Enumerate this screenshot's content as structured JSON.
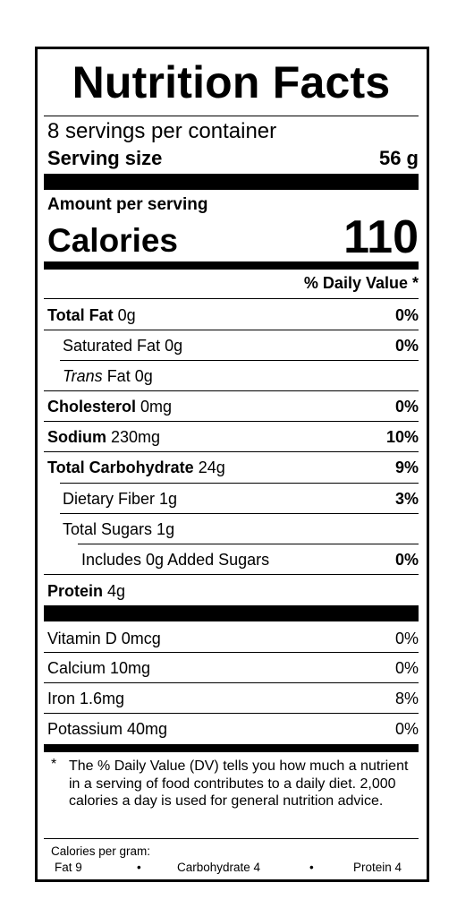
{
  "title": "Nutrition Facts",
  "servings_per_container": "8 servings per container",
  "serving_size": {
    "label": "Serving size",
    "value": "56 g"
  },
  "amount_per_serving": "Amount per serving",
  "calories": {
    "label": "Calories",
    "value": "110"
  },
  "daily_value_header": "% Daily Value *",
  "nutrients": [
    {
      "name": "Total Fat",
      "amount": " 0g",
      "dv": "0%"
    },
    {
      "name": "Saturated Fat 0g",
      "dv": "0%"
    },
    {
      "name_italic": "Trans",
      "name_rest": " Fat 0g"
    },
    {
      "name": "Cholesterol",
      "amount": " 0mg",
      "dv": "0%"
    },
    {
      "name": "Sodium",
      "amount": " 230mg",
      "dv": "10%"
    },
    {
      "name": "Total Carbohydrate",
      "amount": " 24g",
      "dv": "9%"
    },
    {
      "name": "Dietary Fiber 1g",
      "dv": "3%"
    },
    {
      "name": "Total Sugars 1g"
    },
    {
      "name": "Includes 0g Added Sugars",
      "dv": "0%"
    },
    {
      "name": "Protein",
      "amount": " 4g"
    }
  ],
  "vitamins": [
    {
      "name": "Vitamin D 0mcg",
      "dv": "0%"
    },
    {
      "name": "Calcium 10mg",
      "dv": "0%"
    },
    {
      "name": "Iron 1.6mg",
      "dv": "8%"
    },
    {
      "name": "Potassium 40mg",
      "dv": "0%"
    }
  ],
  "footnote": {
    "marker": "*",
    "text": "The % Daily Value (DV) tells you how much a nutrient in a serving of food contributes to a daily diet. 2,000 calories a day is used for general nutrition advice."
  },
  "calories_per_gram": {
    "label": "Calories per gram:",
    "fat": "Fat 9",
    "carbohydrate": "Carbohydrate 4",
    "protein": "Protein 4",
    "separator": "•"
  }
}
